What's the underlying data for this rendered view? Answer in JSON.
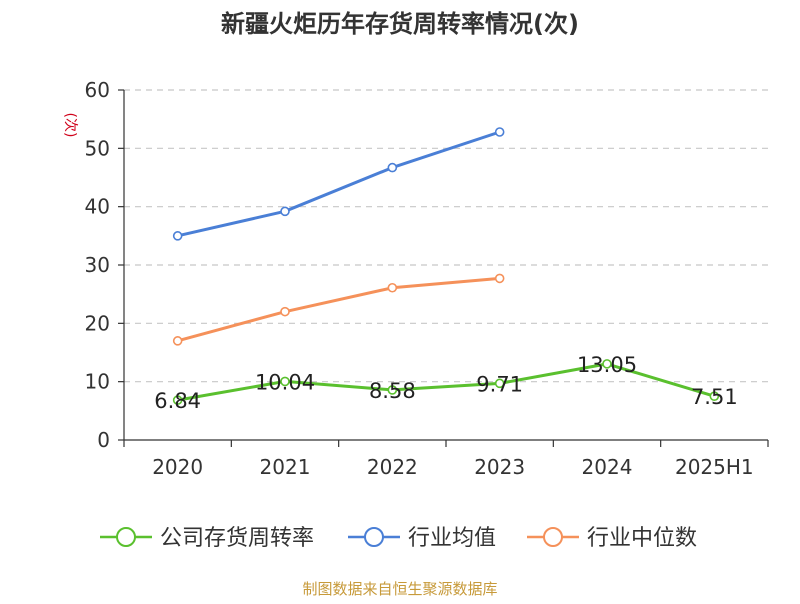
{
  "chart_data": {
    "type": "line",
    "title": "新疆火炬历年存货周转率情况(次)",
    "ylabel": "(次)",
    "xlabel": "",
    "categories": [
      "2020",
      "2021",
      "2022",
      "2023",
      "2024",
      "2025H1"
    ],
    "ylim": [
      0,
      60
    ],
    "yticks": [
      0,
      10,
      20,
      30,
      40,
      50,
      60
    ],
    "grid": true,
    "legend_position": "bottom",
    "series": [
      {
        "name": "公司存货周转率",
        "color": "#5ac02e",
        "values": [
          6.84,
          10.04,
          8.58,
          9.71,
          13.05,
          7.51
        ],
        "labels": [
          "6.84",
          "10.04",
          "8.58",
          "9.71",
          "13.05",
          "7.51"
        ]
      },
      {
        "name": "行业均值",
        "color": "#4a7fd6",
        "values": [
          35.0,
          39.2,
          46.7,
          52.8,
          null,
          null
        ]
      },
      {
        "name": "行业中位数",
        "color": "#f5915a",
        "values": [
          17.0,
          22.0,
          26.1,
          27.7,
          null,
          null
        ]
      }
    ],
    "source": "制图数据来自恒生聚源数据库",
    "source_color": "#c79a3a",
    "ylabel_color": "#d0021b"
  }
}
